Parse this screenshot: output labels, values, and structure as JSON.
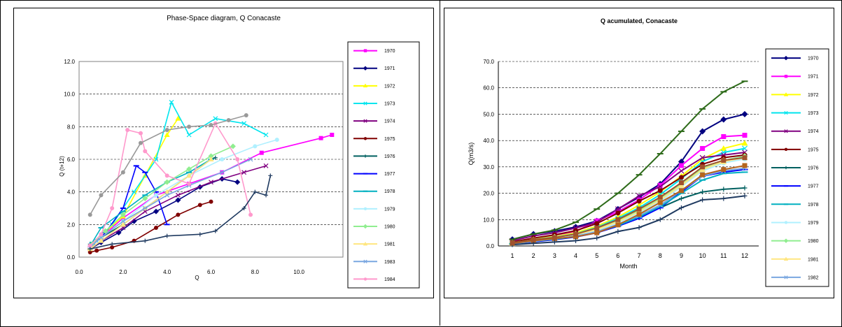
{
  "chart_data": [
    {
      "type": "scatter",
      "title": "Phase-Space diagram, Q Conacaste",
      "xlabel": "Q",
      "ylabel": "Q (t+12)",
      "xlim": [
        0,
        12
      ],
      "ylim": [
        0,
        12
      ],
      "xticks": [
        "0.0",
        "2.0",
        "4.0",
        "6.0",
        "8.0",
        "10.0"
      ],
      "yticks": [
        "0.0",
        "2.0",
        "4.0",
        "6.0",
        "8.0",
        "10.0",
        "12.0"
      ],
      "grid": "horizontal dashed",
      "legend_placement": "right",
      "series": [
        {
          "name": "1970",
          "color": "#ff00ff",
          "marker": "square",
          "x": [
            0.5,
            1.0,
            2.0,
            3.5,
            5.0,
            6.5,
            8.3,
            11.0,
            11.5
          ],
          "y": [
            0.6,
            1.2,
            2.4,
            3.8,
            4.5,
            5.2,
            6.4,
            7.3,
            7.5
          ]
        },
        {
          "name": "1971",
          "color": "#000080",
          "marker": "diamond",
          "x": [
            0.5,
            1.0,
            1.8,
            2.5,
            3.5,
            4.5,
            5.5,
            6.5,
            7.2
          ],
          "y": [
            0.5,
            0.9,
            1.5,
            2.2,
            2.8,
            3.5,
            4.3,
            4.8,
            4.6
          ]
        },
        {
          "name": "1972",
          "color": "#ffff00",
          "marker": "triangle",
          "x": [
            0.5,
            1.0,
            2.0,
            3.0,
            4.0,
            4.5
          ],
          "y": [
            0.6,
            1.3,
            2.5,
            5.0,
            7.5,
            8.5
          ]
        },
        {
          "name": "1973",
          "color": "#00e5ee",
          "marker": "x",
          "x": [
            0.8,
            1.5,
            2.5,
            3.5,
            4.2,
            5.0,
            6.2,
            7.5,
            8.5
          ],
          "y": [
            1.0,
            2.0,
            4.0,
            6.0,
            9.5,
            7.5,
            8.5,
            8.2,
            7.5
          ]
        },
        {
          "name": "1974",
          "color": "#800080",
          "marker": "x",
          "x": [
            0.5,
            1.0,
            2.0,
            3.0,
            4.5,
            6.0,
            7.5,
            8.5
          ],
          "y": [
            0.5,
            1.0,
            1.8,
            2.8,
            3.8,
            4.6,
            5.2,
            5.6
          ]
        },
        {
          "name": "1975",
          "color": "#800000",
          "marker": "circle",
          "x": [
            0.5,
            0.8,
            1.5,
            2.5,
            3.5,
            4.5,
            5.5,
            6.0
          ],
          "y": [
            0.3,
            0.4,
            0.6,
            1.0,
            1.8,
            2.6,
            3.2,
            3.4
          ]
        },
        {
          "name": "1976",
          "color": "#006060",
          "marker": "plus",
          "x": [
            0.5,
            1.0,
            2.0,
            3.0,
            4.0,
            5.0,
            6.0,
            6.2
          ],
          "y": [
            0.8,
            1.2,
            2.0,
            3.0,
            4.0,
            5.0,
            6.0,
            6.1
          ]
        },
        {
          "name": "1977",
          "color": "#0000ff",
          "marker": "dash",
          "x": [
            0.6,
            1.2,
            2.0,
            2.6,
            3.0,
            3.5,
            4.0
          ],
          "y": [
            0.8,
            1.5,
            3.0,
            5.6,
            5.2,
            4.0,
            2.0
          ]
        },
        {
          "name": "1978",
          "color": "#00b0c0",
          "marker": "dash",
          "x": [
            0.6,
            1.0,
            2.0,
            3.0,
            4.0,
            5.0,
            6.0
          ],
          "y": [
            0.9,
            1.8,
            2.8,
            3.8,
            4.6,
            5.2,
            6.0
          ]
        },
        {
          "name": "1979",
          "color": "#b0f0ff",
          "marker": "circle",
          "x": [
            0.5,
            1.0,
            2.0,
            3.5,
            5.0,
            6.5,
            8.0,
            9.0
          ],
          "y": [
            0.6,
            1.2,
            2.2,
            3.8,
            5.0,
            6.0,
            6.8,
            7.2
          ]
        },
        {
          "name": "1980",
          "color": "#90ee90",
          "marker": "diamond",
          "x": [
            0.6,
            1.2,
            2.0,
            3.0,
            4.0,
            5.0,
            6.0,
            7.0
          ],
          "y": [
            0.8,
            1.6,
            2.6,
            3.6,
            4.6,
            5.4,
            6.2,
            6.8
          ]
        },
        {
          "name": "1981",
          "color": "#ffe680",
          "marker": "triangle",
          "x": [
            0.5,
            1.0,
            2.0,
            3.0,
            4.0,
            5.0,
            6.0
          ],
          "y": [
            0.5,
            1.0,
            2.0,
            3.0,
            4.0,
            5.0,
            6.0
          ]
        },
        {
          "name": "1983",
          "color": "#7aa7e0",
          "marker": "x",
          "x": [
            0.5,
            1.0,
            2.0,
            3.0,
            4.0,
            5.0,
            6.5,
            7.8
          ],
          "y": [
            0.6,
            1.2,
            2.2,
            3.0,
            3.8,
            4.4,
            5.2,
            6.0
          ]
        },
        {
          "name": "1984",
          "color": "#ff99cc",
          "marker": "circle",
          "x": [
            0.5,
            1.0,
            1.5,
            2.2,
            2.8,
            3.0,
            4.0,
            5.0,
            6.2,
            7.2,
            7.8
          ],
          "y": [
            0.7,
            1.4,
            3.0,
            7.8,
            7.6,
            6.5,
            5.0,
            4.5,
            8.2,
            6.0,
            2.6
          ]
        },
        {
          "name": "",
          "color": "#999999",
          "marker": "circle",
          "x": [
            0.5,
            1.0,
            2.0,
            2.8,
            4.0,
            5.0,
            6.0,
            6.8,
            7.6
          ],
          "y": [
            2.6,
            3.8,
            5.2,
            7.0,
            7.8,
            8.0,
            8.1,
            8.4,
            8.7
          ]
        },
        {
          "name": "",
          "color": "#1f3a60",
          "marker": "plus",
          "x": [
            0.5,
            1.5,
            3.0,
            4.0,
            5.5,
            6.2,
            7.5,
            8.0,
            8.5,
            8.7
          ],
          "y": [
            0.5,
            0.8,
            1.0,
            1.3,
            1.4,
            1.6,
            3.0,
            4.0,
            3.8,
            5.0
          ]
        }
      ]
    },
    {
      "type": "line",
      "title": "Q acumulated, Conacaste",
      "xlabel": "Month",
      "ylabel": "Q(m3/s)",
      "categories": [
        "1",
        "2",
        "3",
        "4",
        "5",
        "6",
        "7",
        "8",
        "9",
        "10",
        "11",
        "12"
      ],
      "xlim": [
        1,
        12
      ],
      "ylim": [
        0,
        70
      ],
      "yticks": [
        "0.0",
        "10.0",
        "20.0",
        "30.0",
        "40.0",
        "50.0",
        "60.0",
        "70.0"
      ],
      "grid": "horizontal dashed",
      "legend_placement": "right",
      "series": [
        {
          "name": "1970",
          "color": "#000080",
          "marker": "diamond",
          "values": [
            2.5,
            4.5,
            5.6,
            7.2,
            9.5,
            14.0,
            18.5,
            23.5,
            32.0,
            43.5,
            48.0,
            50.0
          ]
        },
        {
          "name": "1971",
          "color": "#ff00ff",
          "marker": "square",
          "values": [
            1.5,
            3.0,
            4.0,
            5.5,
            9.5,
            13.0,
            17.5,
            23.0,
            30.5,
            37.0,
            41.5,
            42.0
          ]
        },
        {
          "name": "1972",
          "color": "#ffff00",
          "marker": "triangle",
          "values": [
            1.2,
            2.6,
            3.6,
            5.0,
            7.5,
            11.0,
            15.5,
            20.5,
            26.5,
            33.0,
            37.0,
            39.0
          ]
        },
        {
          "name": "1973",
          "color": "#00e5ee",
          "marker": "x",
          "values": [
            1.0,
            2.4,
            3.4,
            4.6,
            7.0,
            10.5,
            14.5,
            19.5,
            25.5,
            32.0,
            35.5,
            37.0
          ]
        },
        {
          "name": "1974",
          "color": "#800080",
          "marker": "x",
          "values": [
            2.0,
            3.8,
            5.0,
            6.8,
            9.0,
            14.0,
            19.0,
            22.5,
            28.5,
            33.5,
            34.5,
            35.5
          ]
        },
        {
          "name": "1975",
          "color": "#800000",
          "marker": "circle",
          "values": [
            1.5,
            3.0,
            4.2,
            5.8,
            8.5,
            12.5,
            17.0,
            21.0,
            26.0,
            31.0,
            33.5,
            34.5
          ]
        },
        {
          "name": "1976",
          "color": "#006060",
          "marker": "plus",
          "values": [
            1.0,
            2.0,
            3.0,
            4.0,
            5.5,
            8.0,
            11.0,
            14.5,
            18.0,
            20.5,
            21.5,
            22.0
          ]
        },
        {
          "name": "1977",
          "color": "#0000ff",
          "marker": "dash",
          "values": [
            0.8,
            1.6,
            2.4,
            3.4,
            5.0,
            7.5,
            10.5,
            14.5,
            20.5,
            26.5,
            28.0,
            29.0
          ]
        },
        {
          "name": "1978",
          "color": "#00b0c0",
          "marker": "dash",
          "values": [
            0.8,
            1.8,
            2.6,
            3.6,
            5.2,
            7.8,
            11.0,
            15.0,
            20.0,
            25.0,
            27.5,
            28.0
          ]
        },
        {
          "name": "1979",
          "color": "#b0f0ff",
          "marker": "circle",
          "values": [
            0.9,
            2.0,
            2.8,
            3.8,
            5.8,
            8.8,
            12.5,
            17.0,
            22.5,
            28.5,
            31.5,
            33.0
          ]
        },
        {
          "name": "1980",
          "color": "#90ee90",
          "marker": "diamond",
          "values": [
            1.2,
            2.4,
            3.4,
            4.6,
            6.5,
            9.5,
            13.5,
            18.0,
            23.5,
            29.5,
            32.5,
            34.0
          ]
        },
        {
          "name": "1981",
          "color": "#ffe680",
          "marker": "triangle",
          "values": [
            1.0,
            2.2,
            3.2,
            4.4,
            6.2,
            9.2,
            13.0,
            17.5,
            23.0,
            29.0,
            32.0,
            33.5
          ]
        },
        {
          "name": "1982",
          "color": "#7aa7e0",
          "marker": "x",
          "values": [
            0.9,
            1.8,
            2.7,
            3.7,
            5.4,
            8.2,
            11.5,
            15.5,
            21.0,
            26.5,
            28.5,
            29.5
          ]
        },
        {
          "name": "",
          "color": "#2e6b1a",
          "marker": "dash",
          "values": [
            2.5,
            4.5,
            6.0,
            9.0,
            14.0,
            20.0,
            27.0,
            35.0,
            43.5,
            52.0,
            58.5,
            62.5
          ]
        },
        {
          "name": "",
          "color": "#b5651d",
          "marker": "square",
          "values": [
            1.0,
            2.0,
            2.8,
            3.5,
            5.0,
            8.0,
            12.0,
            16.5,
            21.0,
            27.0,
            29.0,
            30.5
          ]
        },
        {
          "name": "",
          "color": "#1f3a60",
          "marker": "plus",
          "values": [
            0.5,
            1.0,
            1.5,
            2.0,
            3.0,
            5.5,
            7.0,
            10.0,
            14.5,
            17.5,
            18.0,
            19.0
          ]
        },
        {
          "name": "",
          "color": "#a0522d",
          "marker": "square",
          "values": [
            1.2,
            2.4,
            3.2,
            4.5,
            6.8,
            10.0,
            14.0,
            18.5,
            24.0,
            30.0,
            32.5,
            33.5
          ]
        }
      ]
    }
  ]
}
